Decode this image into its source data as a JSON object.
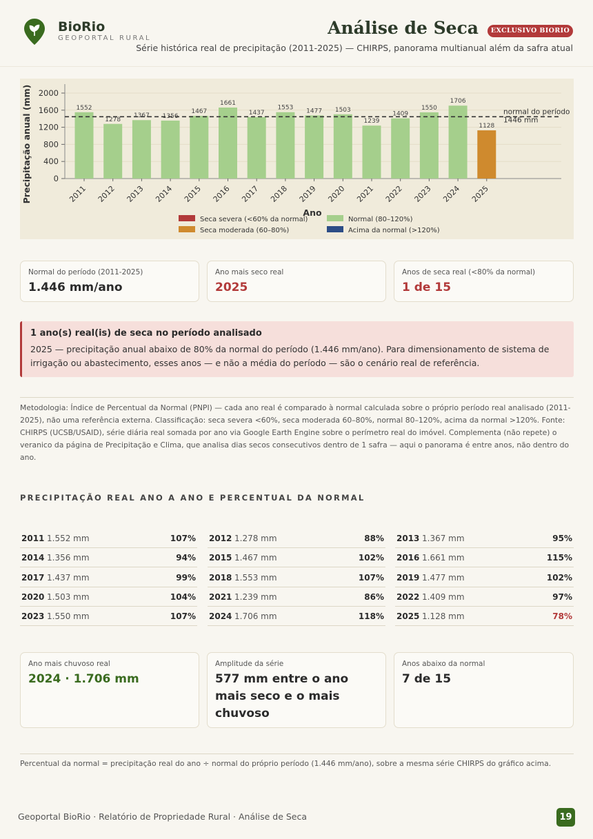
{
  "header": {
    "brand": "BioRio",
    "brand_sub": "GEOPORTAL RURAL",
    "title": "Análise de Seca",
    "badge": "EXCLUSIVO BIORIO",
    "subtitle": "Série histórica real de precipitação (2011-2025) — CHIRPS, panorama multianual além da safra atual",
    "brand_color": "#3a6b1f",
    "accent_color": "#b23a3a",
    "logo_icon": "leaf-pin-icon"
  },
  "chart_data": {
    "type": "bar",
    "categories": [
      "2011",
      "2012",
      "2013",
      "2014",
      "2015",
      "2016",
      "2017",
      "2018",
      "2019",
      "2020",
      "2021",
      "2022",
      "2023",
      "2024",
      "2025"
    ],
    "values": [
      1552,
      1278,
      1367,
      1356,
      1467,
      1661,
      1437,
      1553,
      1477,
      1503,
      1239,
      1409,
      1550,
      1706,
      1128
    ],
    "labels": [
      "1552",
      "1278",
      "1367",
      "1356",
      "1467",
      "1661",
      "1437",
      "1553",
      "1477",
      "1503",
      "1239",
      "1409",
      "1550",
      "1706",
      "1128"
    ],
    "classes": [
      "normal",
      "normal",
      "normal",
      "normal",
      "normal",
      "normal",
      "normal",
      "normal",
      "normal",
      "normal",
      "normal",
      "normal",
      "normal",
      "normal",
      "moderada"
    ],
    "xlabel": "Ano",
    "ylabel": "Precipitação anual (mm)",
    "ylim": [
      0,
      2000
    ],
    "yticks": [
      0,
      400,
      800,
      1200,
      1600,
      2000
    ],
    "reference_line": {
      "value": 1446,
      "label1": "normal do período",
      "label2": "1446 mm"
    },
    "legend": [
      {
        "label": "Seca severa (<60% da normal)",
        "color": "#b23a3a"
      },
      {
        "label": "Normal (80–120%)",
        "color": "#a5cf8c"
      },
      {
        "label": "Seca moderada (60–80%)",
        "color": "#cf8a2e"
      },
      {
        "label": "Acima da normal (>120%)",
        "color": "#2c4d86"
      }
    ],
    "legend_position": "bottom",
    "colors": {
      "normal": "#a5cf8c",
      "moderada": "#cf8a2e",
      "severa": "#b23a3a",
      "acima": "#2c4d86"
    }
  },
  "cards_top": [
    {
      "label": "Normal do período (2011-2025)",
      "value": "1.446 mm/ano"
    },
    {
      "label": "Ano mais seco real",
      "value": "2025"
    },
    {
      "label": "Anos de seca real (<80% da normal)",
      "value": "1 de 15"
    }
  ],
  "alert": {
    "title": "1 ano(s) real(is) de seca no período analisado",
    "text": "2025 — precipitação anual abaixo de 80% da normal do período (1.446 mm/ano). Para dimensionamento de sistema de irrigação ou abastecimento, esses anos — e não a média do período — são o cenário real de referência."
  },
  "methodology": "Metodologia: Índice de Percentual da Normal (PNPI) — cada ano real é comparado à normal calculada sobre o próprio período real analisado (2011-2025), não uma referência externa. Classificação: seca severa <60%, seca moderada 60–80%, normal 80–120%, acima da normal >120%. Fonte: CHIRPS (UCSB/USAID), série diária real somada por ano via Google Earth Engine sobre o perímetro real do imóvel. Complementa (não repete) o veranico da página de Precipitação e Clima, que analisa dias secos consecutivos dentro de 1 safra — aqui o panorama é entre anos, não dentro do ano.",
  "table": {
    "title": "PRECIPITAÇÃO REAL ANO A ANO E PERCENTUAL DA NORMAL",
    "rows": [
      {
        "year": "2011",
        "mm": "1.552 mm",
        "pct": "107%"
      },
      {
        "year": "2012",
        "mm": "1.278 mm",
        "pct": "88%"
      },
      {
        "year": "2013",
        "mm": "1.367 mm",
        "pct": "95%"
      },
      {
        "year": "2014",
        "mm": "1.356 mm",
        "pct": "94%"
      },
      {
        "year": "2015",
        "mm": "1.467 mm",
        "pct": "102%"
      },
      {
        "year": "2016",
        "mm": "1.661 mm",
        "pct": "115%"
      },
      {
        "year": "2017",
        "mm": "1.437 mm",
        "pct": "99%"
      },
      {
        "year": "2018",
        "mm": "1.553 mm",
        "pct": "107%"
      },
      {
        "year": "2019",
        "mm": "1.477 mm",
        "pct": "102%"
      },
      {
        "year": "2020",
        "mm": "1.503 mm",
        "pct": "104%"
      },
      {
        "year": "2021",
        "mm": "1.239 mm",
        "pct": "86%"
      },
      {
        "year": "2022",
        "mm": "1.409 mm",
        "pct": "97%"
      },
      {
        "year": "2023",
        "mm": "1.550 mm",
        "pct": "107%"
      },
      {
        "year": "2024",
        "mm": "1.706 mm",
        "pct": "118%"
      },
      {
        "year": "2025",
        "mm": "1.128 mm",
        "pct": "78%",
        "low": true
      }
    ]
  },
  "cards_bottom": [
    {
      "label": "Ano mais chuvoso real",
      "value": "2024 · 1.706 mm"
    },
    {
      "label": "Amplitude da série",
      "value": "577 mm entre o ano mais seco e o mais chuvoso"
    },
    {
      "label": "Anos abaixo da normal",
      "value": "7 de 15"
    }
  ],
  "footnote": "Percentual da normal = precipitação real do ano ÷ normal do próprio período (1.446 mm/ano), sobre a mesma série CHIRPS do gráfico acima.",
  "footer": {
    "text": "Geoportal BioRio · Relatório de Propriedade Rural · Análise de Seca",
    "page": "19"
  }
}
